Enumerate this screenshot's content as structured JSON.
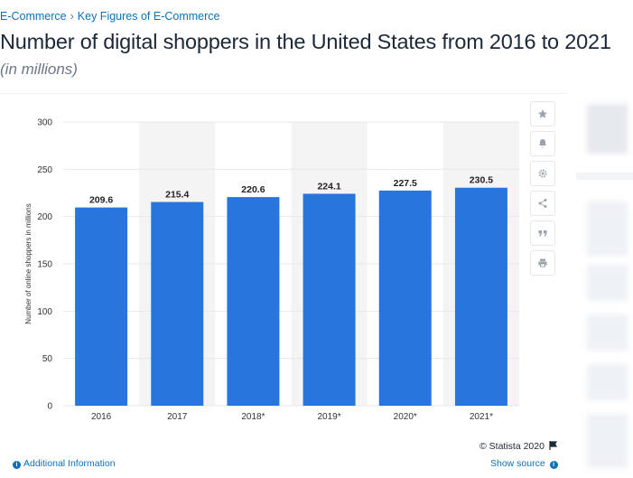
{
  "breadcrumb": {
    "items": [
      "E-Commerce",
      "Key Figures of E-Commerce"
    ],
    "separator": "›"
  },
  "page_title": "Number of digital shoppers in the United States from 2016 to 2021",
  "page_subtitle": "(in millions)",
  "toolbar": {
    "icons": [
      "star-icon",
      "bell-icon",
      "gear-icon",
      "share-icon",
      "quote-icon",
      "print-icon"
    ]
  },
  "footer": {
    "copyright": "© Statista 2020",
    "additional_info": "Additional Information",
    "show_source": "Show source"
  },
  "colors": {
    "bar": "#2876dd",
    "link": "#0b72b5",
    "band": "#f4f4f5"
  },
  "chart_data": {
    "type": "bar",
    "categories": [
      "2016",
      "2017",
      "2018*",
      "2019*",
      "2020*",
      "2021*"
    ],
    "values": [
      209.6,
      215.4,
      220.6,
      224.1,
      227.5,
      230.5
    ],
    "data_labels": [
      "209.6",
      "215.4",
      "220.6",
      "224.1",
      "227.5",
      "230.5"
    ],
    "ylabel": "Number of online shoppers in millions",
    "xlabel": "",
    "ylim": [
      0,
      300
    ],
    "yticks": [
      0,
      50,
      100,
      150,
      200,
      250,
      300
    ],
    "grid": true
  }
}
